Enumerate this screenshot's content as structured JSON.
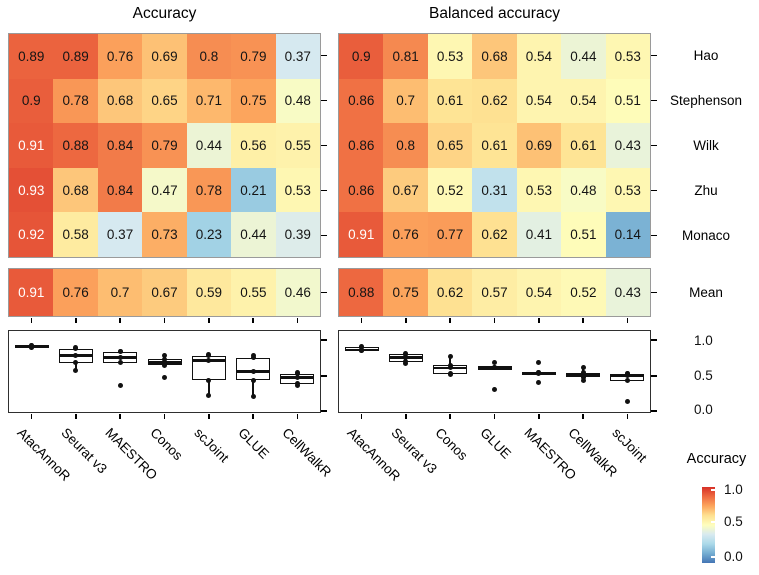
{
  "chart_data": {
    "type": "heatmap",
    "panels": [
      {
        "title": "Accuracy",
        "columns": [
          "AtacAnnoR",
          "Seurat v3",
          "MAESTRO",
          "Conos",
          "scJoint",
          "GLUE",
          "CellWalkR"
        ],
        "rows": [
          "Hao",
          "Stephenson",
          "Wilk",
          "Zhu",
          "Monaco"
        ],
        "values": [
          [
            0.89,
            0.89,
            0.76,
            0.69,
            0.8,
            0.79,
            0.37
          ],
          [
            0.9,
            0.78,
            0.68,
            0.65,
            0.71,
            0.75,
            0.48
          ],
          [
            0.91,
            0.88,
            0.84,
            0.79,
            0.44,
            0.56,
            0.55
          ],
          [
            0.93,
            0.68,
            0.84,
            0.47,
            0.78,
            0.21,
            0.53
          ],
          [
            0.92,
            0.58,
            0.37,
            0.73,
            0.23,
            0.44,
            0.39
          ]
        ],
        "mean_label": "Mean",
        "mean_values": [
          0.91,
          0.76,
          0.7,
          0.67,
          0.59,
          0.55,
          0.46
        ]
      },
      {
        "title": "Balanced accuracy",
        "columns": [
          "AtacAnnoR",
          "Seurat v3",
          "Conos",
          "GLUE",
          "MAESTRO",
          "CellWalkR",
          "scJoint"
        ],
        "rows": [
          "Hao",
          "Stephenson",
          "Wilk",
          "Zhu",
          "Monaco"
        ],
        "values": [
          [
            0.9,
            0.81,
            0.53,
            0.68,
            0.54,
            0.44,
            0.53
          ],
          [
            0.86,
            0.7,
            0.61,
            0.62,
            0.54,
            0.54,
            0.51
          ],
          [
            0.86,
            0.8,
            0.65,
            0.61,
            0.69,
            0.61,
            0.43
          ],
          [
            0.86,
            0.67,
            0.52,
            0.31,
            0.53,
            0.48,
            0.53
          ],
          [
            0.91,
            0.76,
            0.77,
            0.62,
            0.41,
            0.51,
            0.14
          ]
        ],
        "mean_label": "Mean",
        "mean_values": [
          0.88,
          0.75,
          0.62,
          0.57,
          0.54,
          0.52,
          0.43
        ]
      }
    ],
    "boxplot": {
      "y_ticks": [
        "1.0",
        "0.5",
        "0.0"
      ],
      "ylim": [
        0.0,
        1.0
      ],
      "note": "box-and-whisker per column computed from the five dataset values of that column; all five points drawn as dots"
    },
    "colormap": {
      "name": "RdYlBu reversed",
      "stops": [
        [
          0.0,
          "#4575b4"
        ],
        [
          0.125,
          "#74add1"
        ],
        [
          0.25,
          "#abd9e9"
        ],
        [
          0.375,
          "#d8eaf0"
        ],
        [
          0.5,
          "#fefebd"
        ],
        [
          0.625,
          "#fee090"
        ],
        [
          0.75,
          "#fca55d"
        ],
        [
          0.875,
          "#ee6a41"
        ],
        [
          1.0,
          "#d73027"
        ]
      ],
      "white_text_threshold": 0.91
    },
    "legend": {
      "title": "Accuracy",
      "tick_labels": [
        "1.0",
        "0.5",
        "0.0"
      ]
    }
  }
}
